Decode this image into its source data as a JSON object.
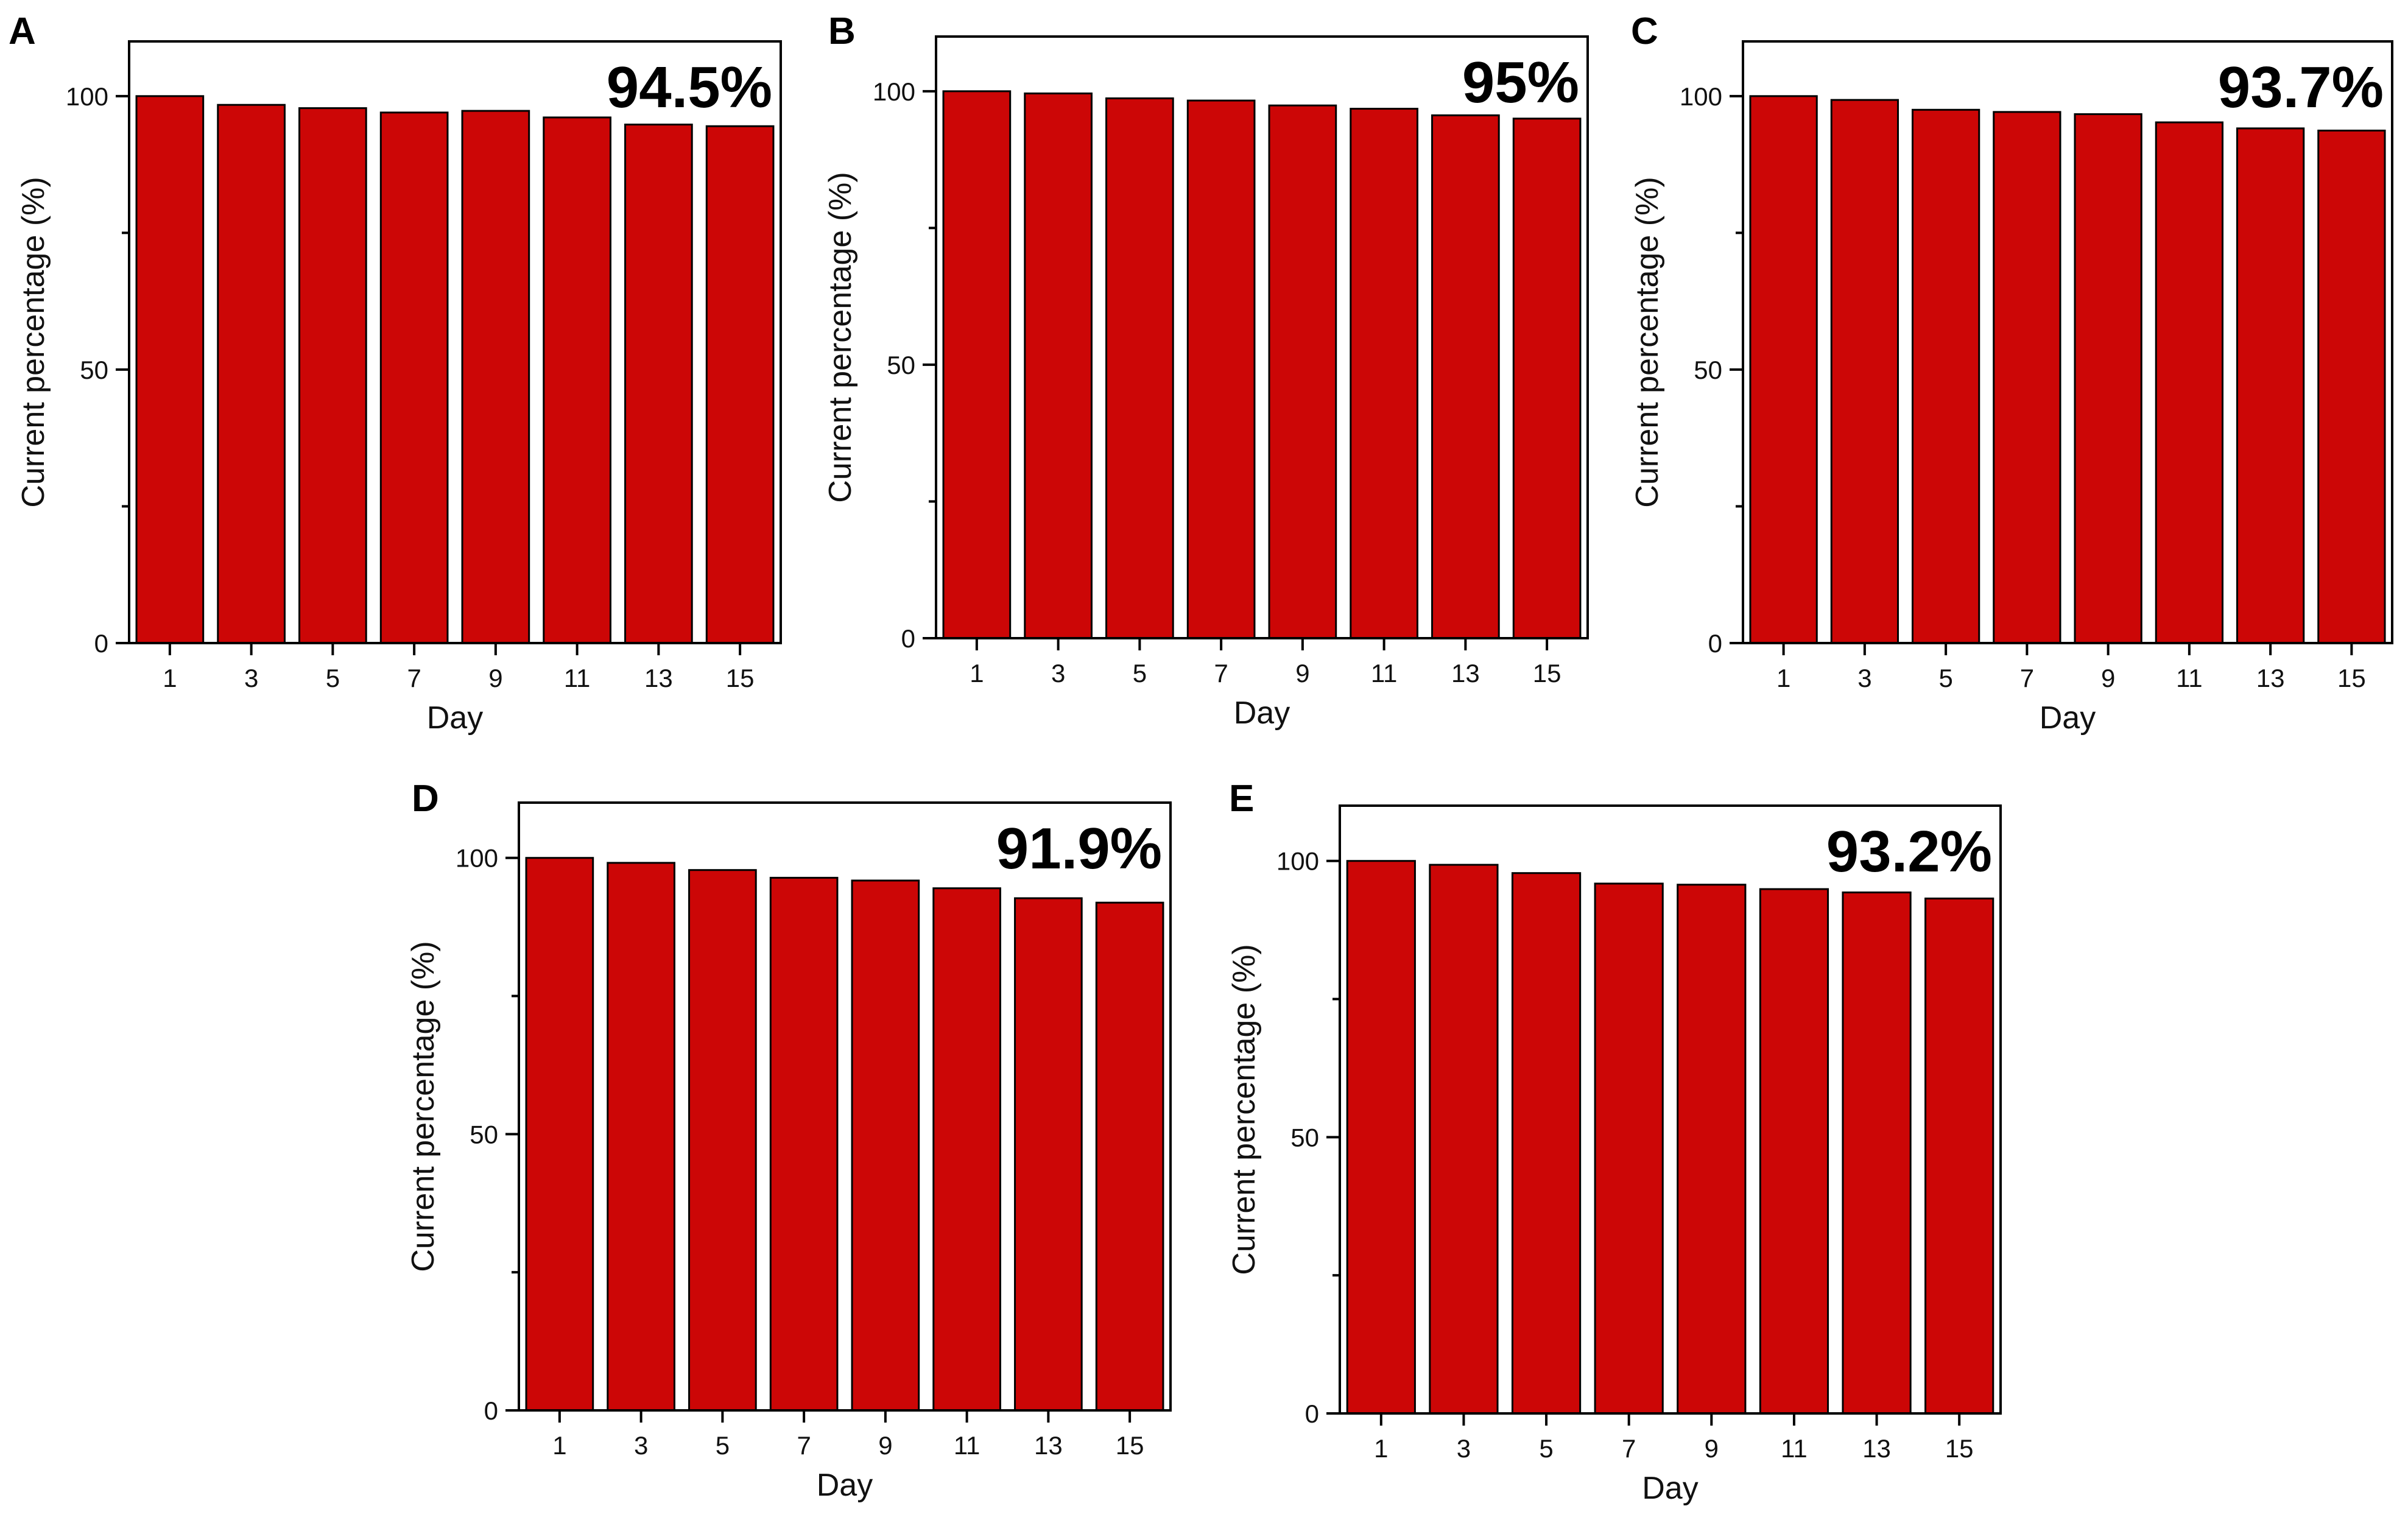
{
  "figure": {
    "bar_color": "#cc0606",
    "outline_color": "#000000"
  },
  "chart_data": [
    {
      "panel": "A",
      "type": "bar",
      "categories": [
        "1",
        "3",
        "5",
        "7",
        "9",
        "11",
        "13",
        "15"
      ],
      "values": [
        100,
        98.4,
        97.8,
        97.0,
        97.3,
        96.1,
        94.8,
        94.5
      ],
      "annotation": "94.5%",
      "xlabel": "Day",
      "ylabel": "Current percentage (%)",
      "ylim": [
        0,
        110
      ],
      "yticks": [
        0,
        50,
        100
      ],
      "y_tick_labels": [
        "0",
        "50",
        "100"
      ],
      "grid": false
    },
    {
      "panel": "B",
      "type": "bar",
      "categories": [
        "1",
        "3",
        "5",
        "7",
        "9",
        "11",
        "13",
        "15"
      ],
      "values": [
        100,
        99.6,
        98.7,
        98.3,
        97.4,
        96.8,
        95.6,
        95.0
      ],
      "annotation": "95%",
      "xlabel": "Day",
      "ylabel": "Current percentage (%)",
      "ylim": [
        0,
        110
      ],
      "yticks": [
        0,
        50,
        100
      ],
      "y_tick_labels": [
        "0",
        "50",
        "100"
      ],
      "grid": false
    },
    {
      "panel": "C",
      "type": "bar",
      "categories": [
        "1",
        "3",
        "5",
        "7",
        "9",
        "11",
        "13",
        "15"
      ],
      "values": [
        100,
        99.3,
        97.5,
        97.1,
        96.7,
        95.2,
        94.1,
        93.7
      ],
      "annotation": "93.7%",
      "xlabel": "Day",
      "ylabel": "Current percentage (%)",
      "ylim": [
        0,
        110
      ],
      "yticks": [
        0,
        50,
        100
      ],
      "y_tick_labels": [
        "0",
        "50",
        "100"
      ],
      "grid": false
    },
    {
      "panel": "D",
      "type": "bar",
      "categories": [
        "1",
        "3",
        "5",
        "7",
        "9",
        "11",
        "13",
        "15"
      ],
      "values": [
        100,
        99.1,
        97.8,
        96.4,
        95.9,
        94.5,
        92.7,
        91.9
      ],
      "annotation": "91.9%",
      "xlabel": "Day",
      "ylabel": "Current percentage (%)",
      "ylim": [
        0,
        110
      ],
      "yticks": [
        0,
        50,
        100
      ],
      "y_tick_labels": [
        "0",
        "50",
        "100"
      ],
      "grid": false
    },
    {
      "panel": "E",
      "type": "bar",
      "categories": [
        "1",
        "3",
        "5",
        "7",
        "9",
        "11",
        "13",
        "15"
      ],
      "values": [
        100,
        99.3,
        97.8,
        95.9,
        95.7,
        94.9,
        94.3,
        93.2
      ],
      "annotation": "93.2%",
      "xlabel": "Day",
      "ylabel": "Current percentage (%)",
      "ylim": [
        0,
        110
      ],
      "yticks": [
        0,
        50,
        100
      ],
      "y_tick_labels": [
        "0",
        "50",
        "100"
      ],
      "grid": false
    }
  ]
}
